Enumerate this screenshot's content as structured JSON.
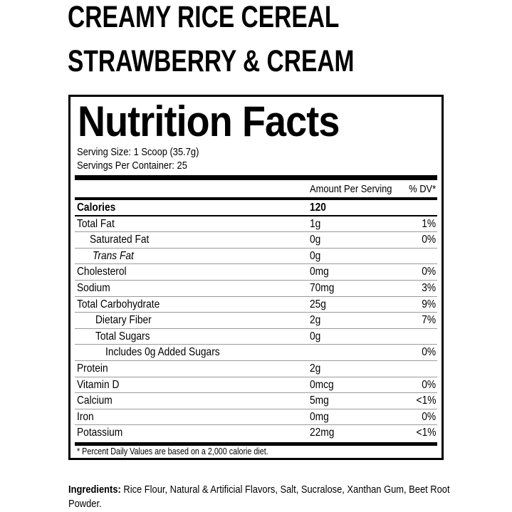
{
  "product": {
    "line1": "CREAMY RICE CEREAL",
    "line2": "STRAWBERRY & CREAM"
  },
  "label": {
    "title": "Nutrition Facts",
    "serving_size": "Serving Size: 1 Scoop (35.7g)",
    "servings_per_container": "Servings Per Container: 25",
    "col_amount": "Amount Per Serving",
    "col_dv": "% DV*",
    "rows": [
      {
        "label": "Calories",
        "amount": "120",
        "dv": ""
      },
      {
        "label": "Total Fat",
        "amount": "1g",
        "dv": "1%"
      },
      {
        "label": "Saturated Fat",
        "amount": "0g",
        "dv": "0%"
      },
      {
        "label": "Trans Fat",
        "amount": "0g",
        "dv": ""
      },
      {
        "label": "Cholesterol",
        "amount": "0mg",
        "dv": "0%"
      },
      {
        "label": "Sodium",
        "amount": "70mg",
        "dv": "3%"
      },
      {
        "label": "Total Carbohydrate",
        "amount": "25g",
        "dv": "9%"
      },
      {
        "label": "Dietary Fiber",
        "amount": "2g",
        "dv": "7%"
      },
      {
        "label": "Total Sugars",
        "amount": "0g",
        "dv": ""
      },
      {
        "label": "Includes 0g Added Sugars",
        "amount": "",
        "dv": "0%"
      },
      {
        "label": "Protein",
        "amount": "2g",
        "dv": ""
      },
      {
        "label": "Vitamin D",
        "amount": "0mcg",
        "dv": "0%"
      },
      {
        "label": "Calcium",
        "amount": "5mg",
        "dv": "<1%"
      },
      {
        "label": "Iron",
        "amount": "0mg",
        "dv": "0%"
      },
      {
        "label": "Potassium",
        "amount": "22mg",
        "dv": "<1%"
      }
    ],
    "footnote": "* Percent Daily Values are based on a 2,000 calorie diet."
  },
  "ingredients": {
    "heading": "Ingredients:",
    "text": " Rice Flour, Natural & Artificial Flavors, Salt, Sucralose, Xanthan Gum, Beet Root Powder."
  }
}
